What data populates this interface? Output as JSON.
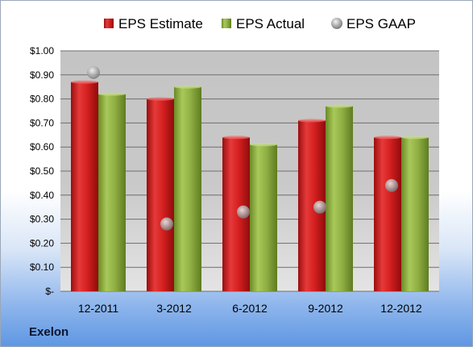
{
  "company": "Exelon",
  "chart_data": {
    "type": "bar",
    "title": "",
    "xlabel": "",
    "ylabel": "",
    "categories": [
      "12-2011",
      "3-2012",
      "6-2012",
      "9-2012",
      "12-2012"
    ],
    "series": [
      {
        "name": "EPS Estimate",
        "type": "bar",
        "color": "#cc1f1f",
        "values": [
          0.87,
          0.8,
          0.64,
          0.71,
          0.64
        ]
      },
      {
        "name": "EPS Actual",
        "type": "bar",
        "color": "#8aab3c",
        "values": [
          0.82,
          0.85,
          0.61,
          0.77,
          0.64
        ]
      },
      {
        "name": "EPS GAAP",
        "type": "scatter",
        "color": "#a8a8a8",
        "values": [
          0.91,
          0.28,
          0.33,
          0.35,
          0.44
        ]
      }
    ],
    "ylim": [
      0,
      1.0
    ],
    "yticks": [
      1.0,
      0.9,
      0.8,
      0.7,
      0.6,
      0.5,
      0.4,
      0.3,
      0.2,
      0.1,
      0
    ],
    "ytick_labels": [
      "$1.00",
      "$0.90",
      "$0.80",
      "$0.70",
      "$0.60",
      "$0.50",
      "$0.40",
      "$0.30",
      "$0.20",
      "$0.10",
      "$-"
    ],
    "grid": true,
    "legend": "top"
  }
}
